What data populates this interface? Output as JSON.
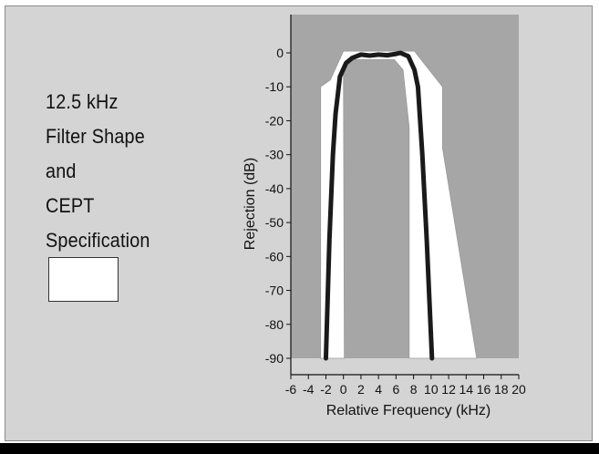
{
  "title_lines": [
    "12.5 kHz",
    "Filter Shape",
    "and",
    "CEPT",
    "Specification"
  ],
  "legend": {
    "swatch_color": "#ffffff",
    "label": ""
  },
  "colors": {
    "frame_bg": "#d4d4d4",
    "plot_bg": "#a6a6a6",
    "mask_fill": "#ffffff",
    "filter_curve": "#1a1a1a",
    "bottom_bar": "#000000"
  },
  "chart_data": {
    "type": "line",
    "title": "",
    "xlabel": "Relative Frequency (kHz)",
    "ylabel": "Rejection (dB)",
    "xlim": [
      -6,
      20
    ],
    "ylim": [
      -90,
      0
    ],
    "x_ticks": [
      -6,
      -4,
      -2,
      0,
      2,
      4,
      6,
      8,
      10,
      12,
      14,
      16,
      18,
      20
    ],
    "y_ticks": [
      0,
      -10,
      -20,
      -30,
      -40,
      -50,
      -60,
      -70,
      -80,
      -90
    ],
    "grid": false,
    "mask": {
      "name": "CEPT Specification",
      "outer": [
        [
          -2.6,
          -90
        ],
        [
          -2.6,
          -10
        ],
        [
          -1.5,
          -8
        ],
        [
          0,
          0.5
        ],
        [
          8.1,
          0.5
        ],
        [
          11.3,
          -10
        ],
        [
          11.3,
          -28
        ],
        [
          15.2,
          -90
        ]
      ],
      "inner": [
        [
          0.1,
          -90
        ],
        [
          0,
          -4
        ],
        [
          0.5,
          -2
        ],
        [
          5.8,
          -2
        ],
        [
          6.8,
          -5
        ],
        [
          7.5,
          -22
        ],
        [
          7.5,
          -90
        ]
      ]
    },
    "series": [
      {
        "name": "12.5 kHz Filter Shape",
        "values": [
          [
            -2,
            -90
          ],
          [
            -1.6,
            -55
          ],
          [
            -1.2,
            -30
          ],
          [
            -0.9,
            -18
          ],
          [
            -0.4,
            -7
          ],
          [
            0.3,
            -3
          ],
          [
            1,
            -1.5
          ],
          [
            2,
            -0.5
          ],
          [
            3,
            -0.8
          ],
          [
            4,
            -0.5
          ],
          [
            5,
            -0.7
          ],
          [
            6,
            -0.3
          ],
          [
            6.5,
            0
          ],
          [
            7.4,
            -1
          ],
          [
            8.1,
            -5
          ],
          [
            8.5,
            -10
          ],
          [
            9,
            -30
          ],
          [
            9.5,
            -55
          ],
          [
            10.1,
            -90
          ]
        ]
      }
    ]
  }
}
